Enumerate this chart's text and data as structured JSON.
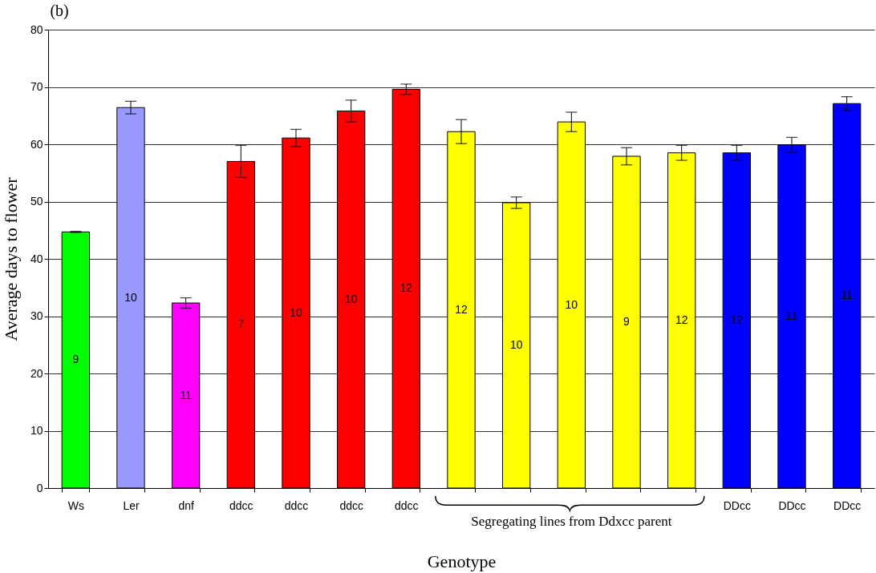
{
  "chart_data": {
    "type": "bar",
    "title": "(b)",
    "xlabel": "Genotype",
    "ylabel": "Average days to flower",
    "categories": [
      "Ws",
      "Ler",
      "dnf",
      "ddcc",
      "ddcc",
      "ddcc",
      "ddcc",
      null,
      null,
      null,
      null,
      null,
      "DDcc",
      "DDcc",
      "DDcc"
    ],
    "values": [
      44.7,
      66.4,
      32.3,
      57.0,
      61.1,
      65.8,
      69.6,
      62.2,
      49.8,
      63.9,
      57.9,
      58.5,
      58.5,
      59.9,
      67.1
    ],
    "errors": [
      0.1,
      1.1,
      0.9,
      2.8,
      1.5,
      1.9,
      0.9,
      2.1,
      1.0,
      1.7,
      1.5,
      1.3,
      1.3,
      1.3,
      1.2
    ],
    "colors": [
      "#00ff00",
      "#9999ff",
      "#ff00ff",
      "#ff0000",
      "#ff0000",
      "#ff0000",
      "#ff0000",
      "#ffff00",
      "#ffff00",
      "#ffff00",
      "#ffff00",
      "#ffff00",
      "#0000ff",
      "#0000ff",
      "#0000ff"
    ],
    "ylim": [
      0,
      80
    ],
    "yticks": [
      0,
      10,
      20,
      30,
      40,
      50,
      60,
      70,
      80
    ],
    "grid": "y",
    "annotations": [
      "9",
      "10",
      "11",
      "7",
      "10",
      "10",
      "12",
      "12",
      "10",
      "10",
      "9",
      "12",
      "12",
      "11",
      "11",
      "Segregating lines from Ddxcc parent"
    ]
  }
}
